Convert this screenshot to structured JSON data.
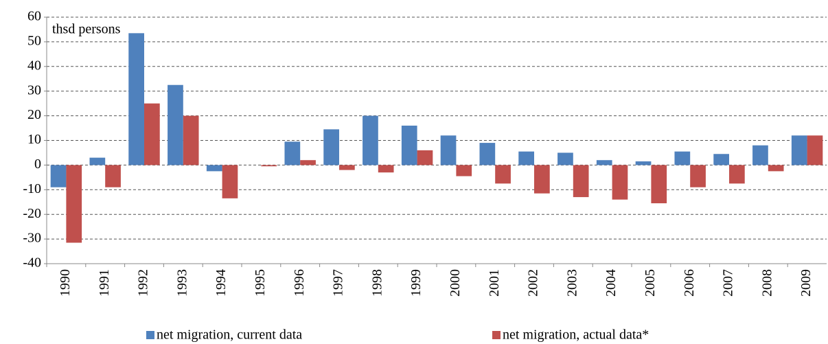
{
  "chart_data": {
    "type": "bar",
    "y_axis_label": "thsd persons",
    "categories": [
      "1990",
      "1991",
      "1992",
      "1993",
      "1994",
      "1995",
      "1996",
      "1997",
      "1998",
      "1999",
      "2000",
      "2001",
      "2002",
      "2003",
      "2004",
      "2005",
      "2006",
      "2007",
      "2008",
      "2009"
    ],
    "series": [
      {
        "name": "net migration, current data",
        "color": "#4f81bd",
        "values": [
          -9,
          3,
          53.5,
          32.5,
          -2.5,
          0,
          9.5,
          14.5,
          20,
          16,
          12,
          9,
          5.5,
          5,
          2,
          1.5,
          5.5,
          4.5,
          8,
          12
        ]
      },
      {
        "name": "net migration, actual data*",
        "color": "#c0504d",
        "values": [
          -31.5,
          -9,
          25,
          20,
          -13.5,
          -0.5,
          2,
          -2,
          -3,
          6,
          -4.5,
          -7.5,
          -11.5,
          -13,
          -14,
          -15.5,
          -9,
          -7.5,
          -2.5,
          12
        ]
      }
    ],
    "ylim": [
      -40,
      60
    ],
    "yticks": [
      -40,
      -30,
      -20,
      -10,
      0,
      10,
      20,
      30,
      40,
      50,
      60
    ],
    "grid": true
  }
}
